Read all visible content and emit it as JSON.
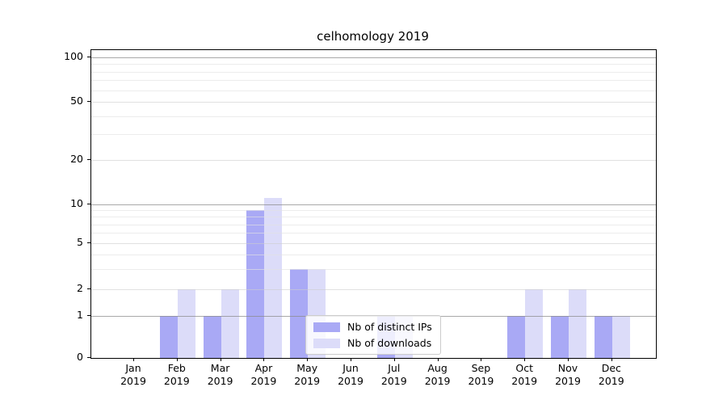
{
  "chart_data": {
    "type": "bar",
    "title": "celhomology 2019",
    "categories": [
      "Jan",
      "Feb",
      "Mar",
      "Apr",
      "May",
      "Jun",
      "Jul",
      "Aug",
      "Sep",
      "Oct",
      "Nov",
      "Dec"
    ],
    "x_year_label": "2019",
    "series": [
      {
        "name": "Nb of distinct IPs",
        "color": "#a9a9f5",
        "values": [
          0,
          1,
          1,
          9,
          3,
          0,
          1,
          0,
          0,
          1,
          1,
          1
        ]
      },
      {
        "name": "Nb of downloads",
        "color": "#dcdcf9",
        "values": [
          0,
          2,
          2,
          11,
          3,
          0,
          1,
          0,
          0,
          2,
          2,
          1
        ]
      }
    ],
    "y_axis": {
      "scale": "pseudo-log (0,1,2,5,10,20,50,100)",
      "tick_labels": [
        100,
        50,
        20,
        10,
        5,
        2,
        1,
        0
      ],
      "decade_ticks": [
        1,
        10,
        100
      ],
      "labeled_nondecade_ticks": [
        2,
        5,
        20,
        50
      ],
      "minor_ticks": [
        3,
        4,
        6,
        7,
        8,
        9,
        30,
        40,
        60,
        70,
        80,
        90
      ],
      "range": [
        0,
        100
      ]
    },
    "legend": {
      "position": "lower center",
      "entries": [
        "Nb of distinct IPs",
        "Nb of downloads"
      ]
    },
    "grid": true,
    "colors": {
      "bar_distinct_ips": "#a9a9f5",
      "bar_downloads": "#dcdcf9",
      "decade_gridline": "#9c9c9c",
      "labeled_gridline": "#dedede",
      "minor_gridline": "#ececec",
      "spine": "#000000",
      "text": "#000000"
    }
  }
}
